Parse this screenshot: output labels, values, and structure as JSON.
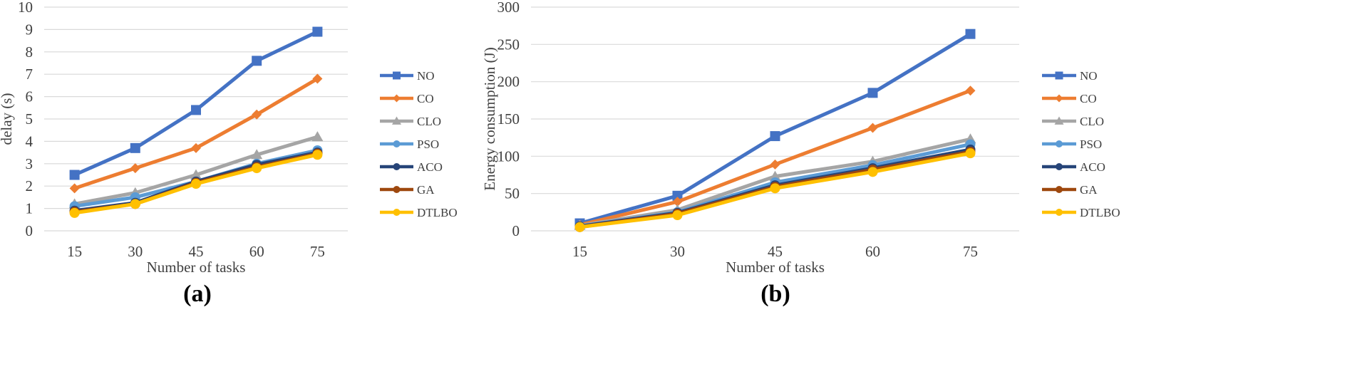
{
  "chart_data": [
    {
      "type": "line",
      "panel_label": "(a)",
      "xlabel": "Number of tasks",
      "ylabel": "delay (s)",
      "categories": [
        "15",
        "30",
        "45",
        "60",
        "75"
      ],
      "ylim": [
        0,
        10
      ],
      "yticks": [
        0,
        1,
        2,
        3,
        4,
        5,
        6,
        7,
        8,
        9,
        10
      ],
      "grid": true,
      "legend_position": "right",
      "series": [
        {
          "name": "NO",
          "color": "#4472c4",
          "marker": "square",
          "values": [
            2.5,
            3.7,
            5.4,
            7.6,
            8.9
          ]
        },
        {
          "name": "CO",
          "color": "#ed7d31",
          "marker": "diamond",
          "values": [
            1.9,
            2.8,
            3.7,
            5.2,
            6.8
          ]
        },
        {
          "name": "CLO",
          "color": "#a5a5a5",
          "marker": "triangle",
          "values": [
            1.2,
            1.7,
            2.5,
            3.4,
            4.2
          ]
        },
        {
          "name": "PSO",
          "color": "#5b9bd5",
          "marker": "circle",
          "values": [
            1.1,
            1.5,
            2.2,
            3.0,
            3.6
          ]
        },
        {
          "name": "ACO",
          "color": "#264478",
          "marker": "circle",
          "values": [
            0.9,
            1.25,
            2.2,
            2.95,
            3.5
          ]
        },
        {
          "name": "GA",
          "color": "#9e480e",
          "marker": "circle",
          "values": [
            0.85,
            1.2,
            2.15,
            2.85,
            3.45
          ]
        },
        {
          "name": "DTLBO",
          "color": "#ffc000",
          "marker": "circle",
          "values": [
            0.8,
            1.2,
            2.1,
            2.8,
            3.4
          ]
        }
      ]
    },
    {
      "type": "line",
      "panel_label": "(b)",
      "xlabel": "Number of tasks",
      "ylabel": "Energy consumption (J)",
      "categories": [
        "15",
        "30",
        "45",
        "60",
        "75"
      ],
      "ylim": [
        0,
        300
      ],
      "yticks": [
        0,
        50,
        100,
        150,
        200,
        250,
        300
      ],
      "grid": true,
      "legend_position": "right",
      "series": [
        {
          "name": "NO",
          "color": "#4472c4",
          "marker": "square",
          "values": [
            10,
            47,
            127,
            185,
            264
          ]
        },
        {
          "name": "CO",
          "color": "#ed7d31",
          "marker": "diamond",
          "values": [
            8,
            39,
            89,
            138,
            188
          ]
        },
        {
          "name": "CLO",
          "color": "#a5a5a5",
          "marker": "triangle",
          "values": [
            7,
            28,
            73,
            93,
            123
          ]
        },
        {
          "name": "PSO",
          "color": "#5b9bd5",
          "marker": "circle",
          "values": [
            6,
            25,
            65,
            88,
            116
          ]
        },
        {
          "name": "ACO",
          "color": "#264478",
          "marker": "circle",
          "values": [
            6,
            24,
            61,
            84,
            109
          ]
        },
        {
          "name": "GA",
          "color": "#9e480e",
          "marker": "circle",
          "values": [
            5,
            23,
            59,
            82,
            106
          ]
        },
        {
          "name": "DTLBO",
          "color": "#ffc000",
          "marker": "circle",
          "values": [
            5,
            21,
            57,
            79,
            104
          ]
        }
      ]
    }
  ]
}
